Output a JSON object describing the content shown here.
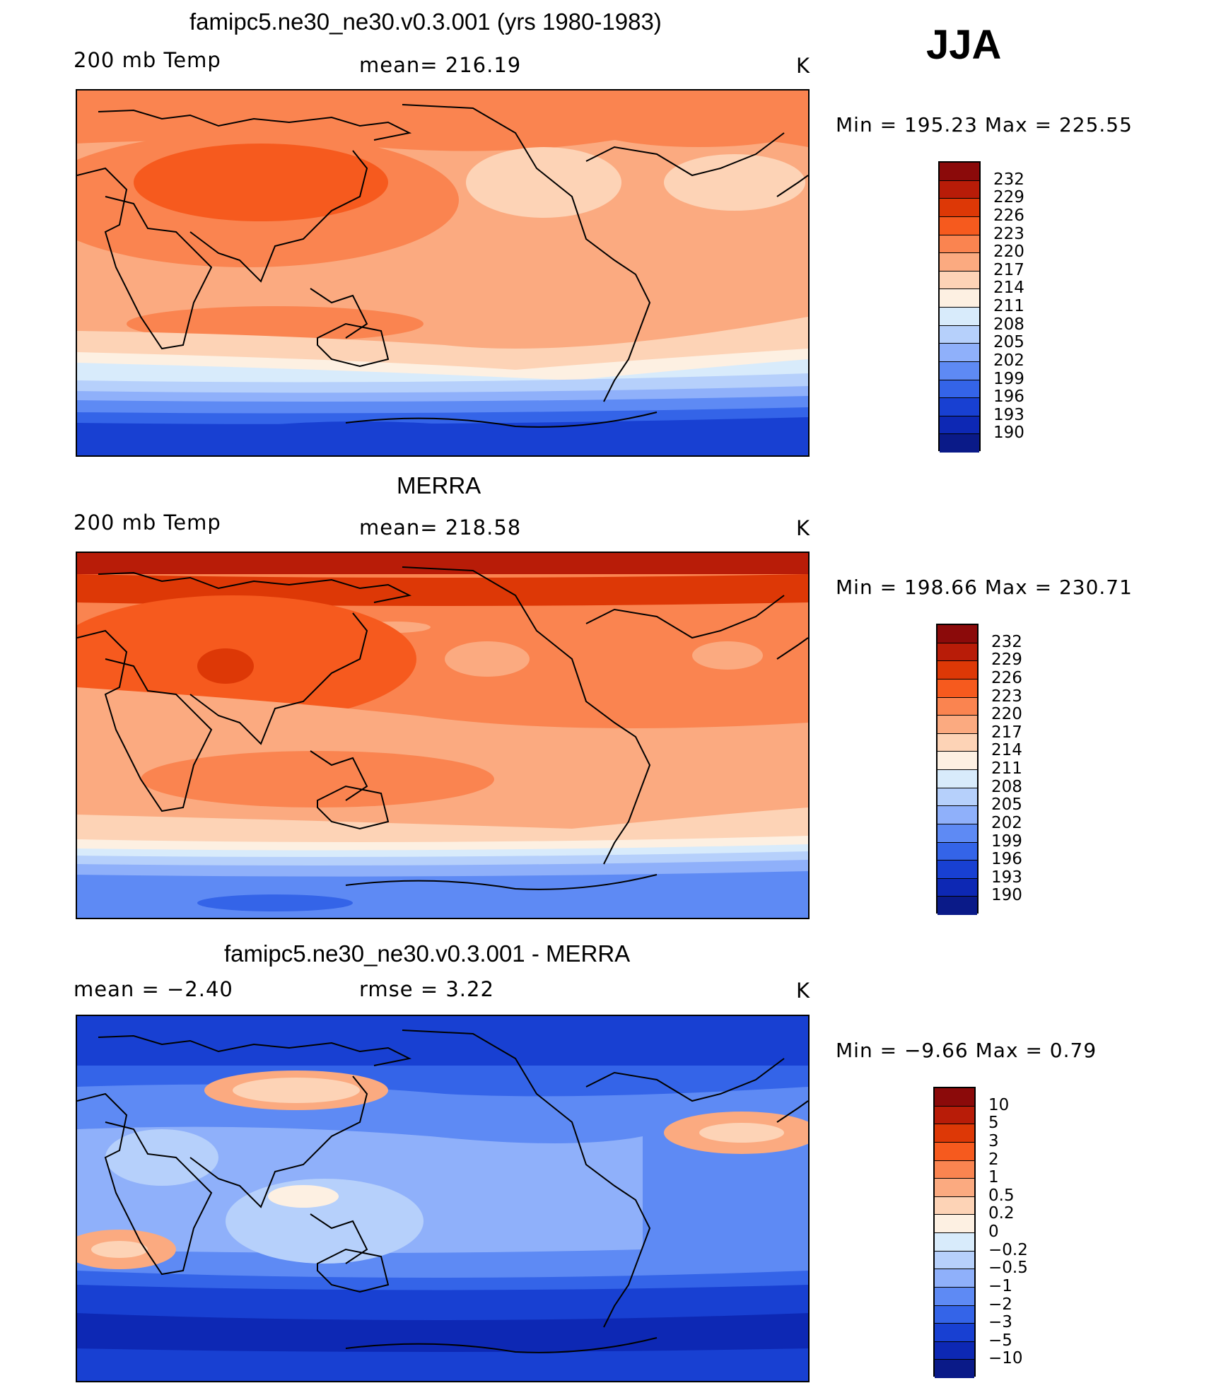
{
  "season": "JJA",
  "panels": [
    {
      "title": "famipc5.ne30_ne30.v0.3.001 (yrs 1980-1983)",
      "left_label": "200 mb Temp",
      "center_label": "mean= 216.19",
      "units": "K",
      "minmax": "Min  =  195.23  Max  =  225.55",
      "contour_levels": [
        "232",
        "229",
        "226",
        "223",
        "220",
        "217",
        "214",
        "211",
        "208",
        "205",
        "202",
        "199",
        "196",
        "193",
        "190"
      ]
    },
    {
      "title": "MERRA",
      "left_label": "200 mb Temp",
      "center_label": "mean= 218.58",
      "units": "K",
      "minmax": "Min  =  198.66  Max  =  230.71",
      "contour_levels": [
        "232",
        "229",
        "226",
        "223",
        "220",
        "217",
        "214",
        "211",
        "208",
        "205",
        "202",
        "199",
        "196",
        "193",
        "190"
      ]
    },
    {
      "title": "famipc5.ne30_ne30.v0.3.001 - MERRA",
      "left_label": "mean =    −2.40",
      "center_label": "rmse =     3.22",
      "units": "K",
      "minmax": "Min  =    −9.66  Max  =     0.79",
      "contour_levels": [
        "10",
        "5",
        "3",
        "2",
        "1",
        "0.5",
        "0.2",
        "0",
        "−0.2",
        "−0.5",
        "−1",
        "−2",
        "−3",
        "−5",
        "−10"
      ]
    }
  ],
  "colorbar_colors": [
    "#8b0a0a",
    "#b81c08",
    "#dd3806",
    "#f65a1e",
    "#fa8450",
    "#fbaa80",
    "#fdd3b6",
    "#fdf0e2",
    "#d8ebfb",
    "#b6d0fb",
    "#8fb0fa",
    "#5e8af4",
    "#3464e8",
    "#1840d2",
    "#0d28b4",
    "#0a1a88"
  ]
}
